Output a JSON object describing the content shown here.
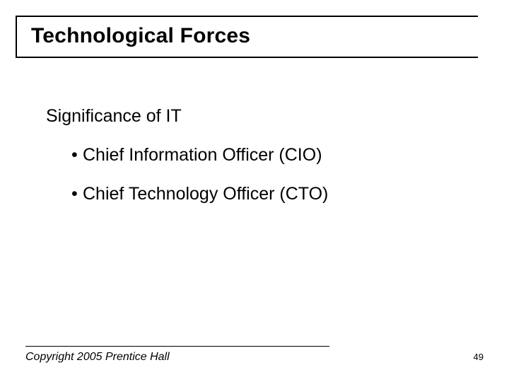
{
  "slide": {
    "title": "Technological Forces",
    "subheading": "Significance of IT",
    "bullets": [
      "Chief Information Officer (CIO)",
      "Chief Technology Officer (CTO)"
    ],
    "footer": {
      "copyright": "Copyright 2005 Prentice Hall",
      "page_number": "49"
    },
    "styles": {
      "background_color": "#ffffff",
      "text_color": "#000000",
      "rule_color": "#000000",
      "title_fontsize": 30,
      "title_fontweight": "bold",
      "body_fontsize": 25,
      "footer_fontsize": 16,
      "pagenum_fontsize": 13,
      "font_family": "Arial"
    }
  }
}
